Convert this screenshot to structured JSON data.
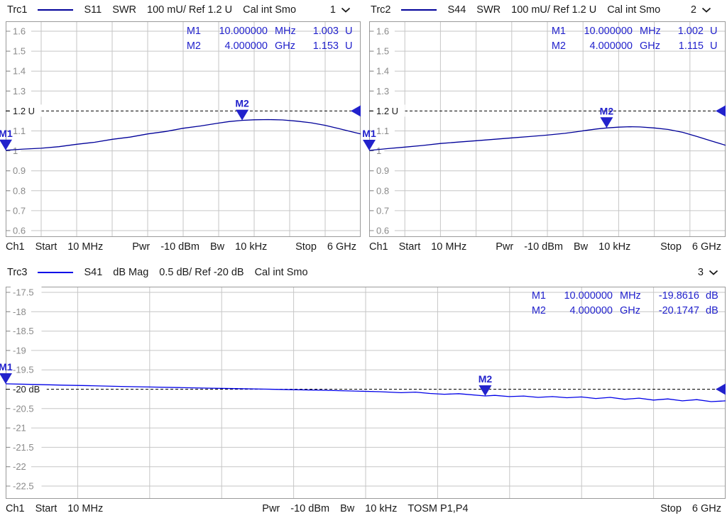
{
  "colors": {
    "trace_navy": "#000099",
    "trace_blue": "#0000e8",
    "marker": "#2222cc",
    "grid": "#c6c6c6",
    "panel_border": "#9a9a9a",
    "axis_label": "#8a8a8a",
    "ref_line": "#000000",
    "text": "#1a1a1a",
    "background": "#ffffff"
  },
  "headers": [
    {
      "trace": "Trc1",
      "param": "S11",
      "format": "SWR",
      "scale": "100 mU/ Ref 1.2 U",
      "cal": "Cal int Smo",
      "channel": "1"
    },
    {
      "trace": "Trc2",
      "param": "S44",
      "format": "SWR",
      "scale": "100 mU/ Ref 1.2 U",
      "cal": "Cal int Smo",
      "channel": "2"
    },
    {
      "trace": "Trc3",
      "param": "S41",
      "format": "dB Mag",
      "scale": "0.5 dB/ Ref -20 dB",
      "cal": "Cal int Smo",
      "channel": "3"
    }
  ],
  "axis_top": [
    "Ch1",
    "Start",
    "10 MHz",
    "Pwr",
    "-10 dBm",
    "Bw",
    "10 kHz",
    "Stop",
    "6 GHz"
  ],
  "axis_bottom": [
    "Ch1",
    "Start",
    "10 MHz",
    "Pwr",
    "-10 dBm",
    "Bw",
    "10 kHz",
    "TOSM P1,P4",
    "Stop",
    "6 GHz"
  ],
  "chart_data": [
    {
      "type": "line",
      "name": "Trc1",
      "parameter": "S11",
      "format": "SWR",
      "title": "Trc1 S11 SWR 100 mU/ Ref 1.2 U",
      "x_unit": "GHz",
      "xlim": [
        0.01,
        6
      ],
      "y_unit": "U",
      "line_color": "#000099",
      "ref_index": 4,
      "ref_level": {
        "label": "1.2 U",
        "value": 1.2
      },
      "y_ticks": [
        1.6,
        1.5,
        1.4,
        1.3,
        1.2,
        1.1,
        1.0,
        0.9,
        0.8,
        0.7,
        0.6
      ],
      "y_tick_labels": [
        "1.6",
        "1.5",
        "1.4",
        "1.3",
        "1.2 U",
        "1.1",
        "1",
        "0.9",
        "0.8",
        "0.7",
        "0.6"
      ],
      "x": [
        0.01,
        0.31,
        0.61,
        0.91,
        1.21,
        1.51,
        1.81,
        2.11,
        2.41,
        2.71,
        3.0,
        3.3,
        3.6,
        3.78,
        4.0,
        4.2,
        4.44,
        4.68,
        4.92,
        5.16,
        5.4,
        5.64,
        5.82,
        6.0
      ],
      "y": [
        1.003,
        1.009,
        1.013,
        1.021,
        1.033,
        1.043,
        1.058,
        1.069,
        1.085,
        1.097,
        1.113,
        1.125,
        1.139,
        1.147,
        1.153,
        1.156,
        1.157,
        1.155,
        1.149,
        1.141,
        1.128,
        1.111,
        1.098,
        1.085
      ],
      "markers": [
        {
          "name": "M1",
          "freq_text": "10.000000",
          "freq_unit": "MHz",
          "value_text": "1.003",
          "value_unit": "U",
          "x_ghz": 0.01,
          "value": 1.003
        },
        {
          "name": "M2",
          "freq_text": "4.000000",
          "freq_unit": "GHz",
          "value_text": "1.153",
          "value_unit": "U",
          "x_ghz": 4.0,
          "value": 1.153
        }
      ]
    },
    {
      "type": "line",
      "name": "Trc2",
      "parameter": "S44",
      "format": "SWR",
      "title": "Trc2 S44 SWR 100 mU/ Ref 1.2 U",
      "x_unit": "GHz",
      "xlim": [
        0.01,
        6
      ],
      "y_unit": "U",
      "line_color": "#000099",
      "ref_index": 4,
      "ref_level": {
        "label": "1.2 U",
        "value": 1.2
      },
      "y_ticks": [
        1.6,
        1.5,
        1.4,
        1.3,
        1.2,
        1.1,
        1.0,
        0.9,
        0.8,
        0.7,
        0.6
      ],
      "y_tick_labels": [
        "1.6",
        "1.5",
        "1.4",
        "1.3",
        "1.2 U",
        "1.1",
        "1",
        "0.9",
        "0.8",
        "0.7",
        "0.6"
      ],
      "x": [
        0.01,
        0.31,
        0.61,
        0.91,
        1.21,
        1.51,
        1.81,
        2.11,
        2.41,
        2.71,
        3.0,
        3.3,
        3.48,
        3.66,
        3.84,
        4.0,
        4.2,
        4.38,
        4.56,
        4.8,
        5.04,
        5.28,
        5.52,
        5.76,
        6.0
      ],
      "y": [
        1.002,
        1.011,
        1.019,
        1.027,
        1.037,
        1.044,
        1.051,
        1.058,
        1.065,
        1.072,
        1.079,
        1.088,
        1.095,
        1.103,
        1.11,
        1.115,
        1.119,
        1.121,
        1.12,
        1.115,
        1.107,
        1.093,
        1.072,
        1.05,
        1.028
      ],
      "markers": [
        {
          "name": "M1",
          "freq_text": "10.000000",
          "freq_unit": "MHz",
          "value_text": "1.002",
          "value_unit": "U",
          "x_ghz": 0.01,
          "value": 1.002
        },
        {
          "name": "M2",
          "freq_text": "4.000000",
          "freq_unit": "GHz",
          "value_text": "1.115",
          "value_unit": "U",
          "x_ghz": 4.0,
          "value": 1.115
        }
      ]
    },
    {
      "type": "line",
      "name": "Trc3",
      "parameter": "S41",
      "format": "dB Mag",
      "title": "Trc3 S41 dB Mag 0.5 dB/ Ref -20 dB",
      "x_unit": "GHz",
      "xlim": [
        0.01,
        6
      ],
      "y_unit": "dB",
      "line_color": "#0000e8",
      "ref_index": 5,
      "ref_level": {
        "label": "-20 dB",
        "value": -20
      },
      "y_ticks": [
        -17.5,
        -18,
        -18.5,
        -19,
        -19.5,
        -20,
        -20.5,
        -21,
        -21.5,
        -22,
        -22.5
      ],
      "y_tick_labels": [
        "-17.5",
        "-18",
        "-18.5",
        "-19",
        "-19.5",
        "-20 dB",
        "-20.5",
        "-21",
        "-21.5",
        "-22",
        "-22.5"
      ],
      "x": [
        0.01,
        0.25,
        0.49,
        0.73,
        0.97,
        1.21,
        1.45,
        1.69,
        1.93,
        2.17,
        2.41,
        2.65,
        2.89,
        3.12,
        3.3,
        3.42,
        3.54,
        3.66,
        3.78,
        4.0,
        4.08,
        4.2,
        4.32,
        4.44,
        4.56,
        4.68,
        4.8,
        4.92,
        5.04,
        5.16,
        5.28,
        5.4,
        5.52,
        5.64,
        5.76,
        5.88,
        6.0
      ],
      "y": [
        -19.8616,
        -19.878,
        -19.895,
        -19.91,
        -19.928,
        -19.943,
        -19.958,
        -19.972,
        -19.985,
        -19.998,
        -20.012,
        -20.028,
        -20.045,
        -20.065,
        -20.09,
        -20.075,
        -20.11,
        -20.13,
        -20.115,
        -20.1747,
        -20.16,
        -20.19,
        -20.175,
        -20.21,
        -20.19,
        -20.22,
        -20.2,
        -20.24,
        -20.21,
        -20.26,
        -20.23,
        -20.28,
        -20.25,
        -20.3,
        -20.27,
        -20.32,
        -20.3
      ],
      "markers": [
        {
          "name": "M1",
          "freq_text": "10.000000",
          "freq_unit": "MHz",
          "value_text": "-19.8616",
          "value_unit": "dB",
          "x_ghz": 0.01,
          "value": -19.8616
        },
        {
          "name": "M2",
          "freq_text": "4.000000",
          "freq_unit": "GHz",
          "value_text": "-20.1747",
          "value_unit": "dB",
          "x_ghz": 4.0,
          "value": -20.1747
        }
      ]
    }
  ]
}
